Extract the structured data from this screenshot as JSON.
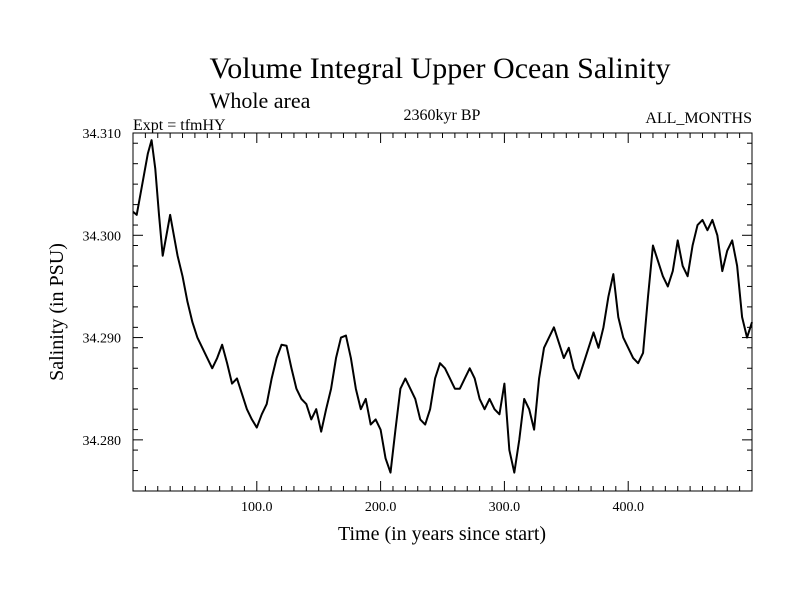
{
  "chart_data": {
    "type": "line",
    "title": "Volume Integral Upper Ocean Salinity",
    "subtitle": "Whole area",
    "expt_label": "Expt = tfmHY",
    "period_label": "2360kyr BP",
    "months_label": "ALL_MONTHS",
    "xlabel": "Time (in years since start)",
    "ylabel": "Salinity (in PSU)",
    "xlim": [
      0,
      500
    ],
    "ylim": [
      34.275,
      34.31
    ],
    "x_ticks": [
      100,
      200,
      300,
      400
    ],
    "x_tick_labels": [
      "100.0",
      "200.0",
      "300.0",
      "400.0"
    ],
    "y_ticks": [
      34.28,
      34.29,
      34.3,
      34.31
    ],
    "y_tick_labels": [
      "34.280",
      "34.290",
      "34.300",
      "34.310"
    ],
    "grid": false,
    "series": [
      {
        "name": "salinity",
        "x": [
          0,
          3,
          6,
          9,
          12,
          15,
          18,
          21,
          24,
          27,
          30,
          33,
          36,
          40,
          44,
          48,
          52,
          56,
          60,
          64,
          68,
          72,
          76,
          80,
          84,
          88,
          92,
          96,
          100,
          104,
          108,
          112,
          116,
          120,
          124,
          128,
          132,
          136,
          140,
          144,
          148,
          152,
          156,
          160,
          164,
          168,
          172,
          176,
          180,
          184,
          188,
          192,
          196,
          200,
          204,
          208,
          212,
          216,
          220,
          224,
          228,
          232,
          236,
          240,
          244,
          248,
          252,
          256,
          260,
          264,
          268,
          272,
          276,
          280,
          284,
          288,
          292,
          296,
          300,
          304,
          308,
          312,
          316,
          320,
          324,
          328,
          332,
          336,
          340,
          344,
          348,
          352,
          356,
          360,
          364,
          368,
          372,
          376,
          380,
          384,
          388,
          392,
          396,
          400,
          404,
          408,
          412,
          416,
          420,
          424,
          428,
          432,
          436,
          440,
          444,
          448,
          452,
          456,
          460,
          464,
          468,
          472,
          476,
          480,
          484,
          488,
          492,
          496,
          500
        ],
        "values": [
          34.3023,
          34.302,
          34.304,
          34.306,
          34.308,
          34.3093,
          34.3065,
          34.302,
          34.298,
          34.3,
          34.302,
          34.3,
          34.298,
          34.296,
          34.2935,
          34.2915,
          34.29,
          34.289,
          34.288,
          34.287,
          34.288,
          34.2893,
          34.2875,
          34.2855,
          34.286,
          34.2845,
          34.283,
          34.282,
          34.2812,
          34.2825,
          34.2835,
          34.286,
          34.288,
          34.2893,
          34.2892,
          34.287,
          34.285,
          34.284,
          34.2835,
          34.282,
          34.283,
          34.2808,
          34.283,
          34.285,
          34.288,
          34.29,
          34.2902,
          34.288,
          34.285,
          34.283,
          34.284,
          34.2815,
          34.282,
          34.281,
          34.2782,
          34.2768,
          34.281,
          34.285,
          34.286,
          34.285,
          34.284,
          34.282,
          34.2815,
          34.283,
          34.286,
          34.2875,
          34.287,
          34.286,
          34.285,
          34.285,
          34.286,
          34.287,
          34.286,
          34.284,
          34.283,
          34.284,
          34.283,
          34.2825,
          34.2855,
          34.279,
          34.2768,
          34.28,
          34.284,
          34.283,
          34.281,
          34.286,
          34.289,
          34.29,
          34.291,
          34.2895,
          34.288,
          34.289,
          34.287,
          34.286,
          34.2875,
          34.289,
          34.2905,
          34.289,
          34.291,
          34.294,
          34.2962,
          34.292,
          34.29,
          34.289,
          34.288,
          34.2875,
          34.2885,
          34.294,
          34.299,
          34.2975,
          34.296,
          34.295,
          34.2965,
          34.2995,
          34.297,
          34.296,
          34.299,
          34.301,
          34.3015,
          34.3005,
          34.3015,
          34.3,
          34.2965,
          34.2985,
          34.2995,
          34.297,
          34.292,
          34.29,
          34.2915
        ]
      }
    ]
  }
}
